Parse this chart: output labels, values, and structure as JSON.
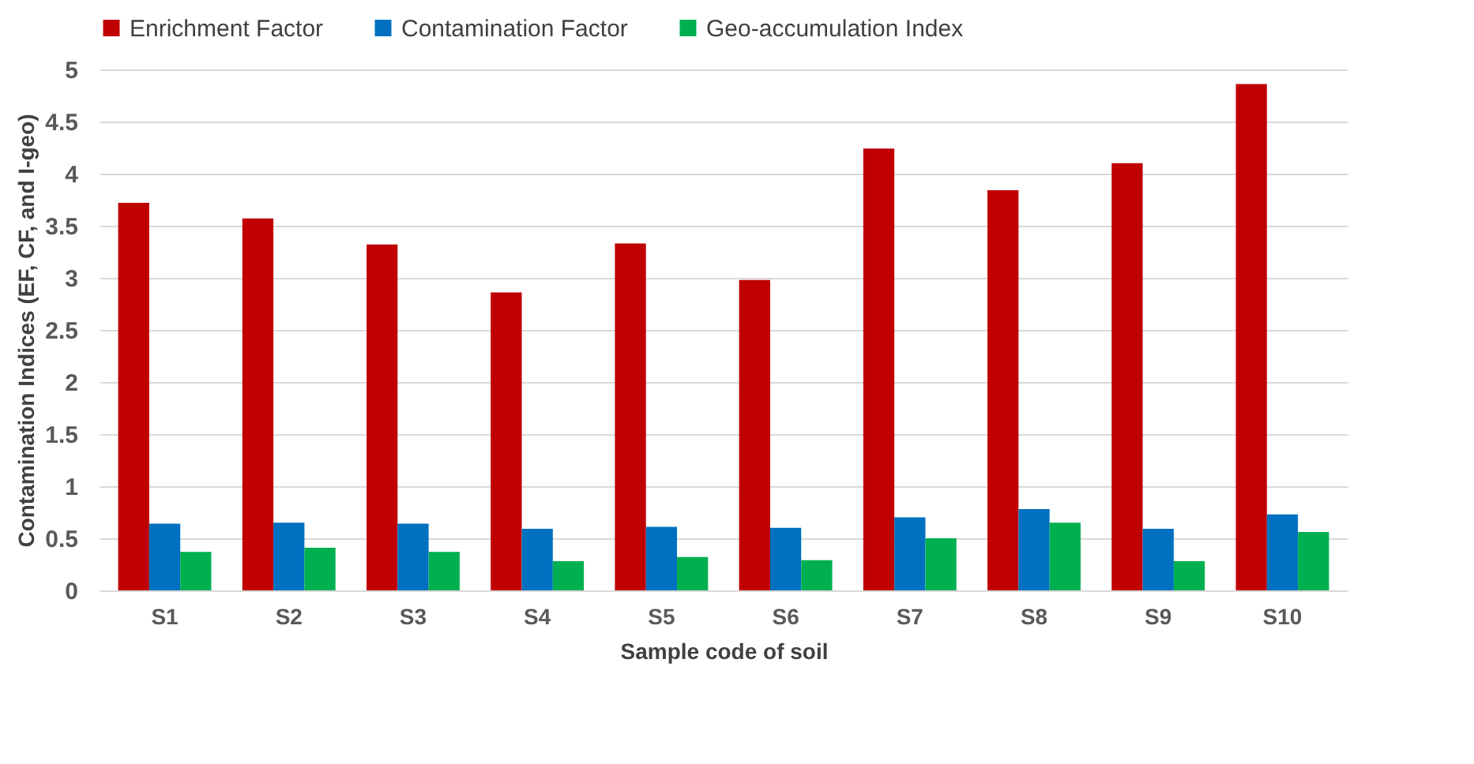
{
  "chart_data": {
    "type": "bar",
    "xlabel": "Sample code of soil",
    "ylabel": "Contamination Indices (EF, CF, and I-geo)",
    "categories": [
      "S1",
      "S2",
      "S3",
      "S4",
      "S5",
      "S6",
      "S7",
      "S8",
      "S9",
      "S10"
    ],
    "series": [
      {
        "name": "Enrichment Factor",
        "color": "#c00000",
        "values": [
          3.72,
          3.57,
          3.32,
          2.86,
          3.33,
          2.98,
          4.24,
          3.84,
          4.1,
          4.86
        ]
      },
      {
        "name": "Contamination Factor",
        "color": "#0070c0",
        "values": [
          0.64,
          0.65,
          0.64,
          0.59,
          0.61,
          0.6,
          0.7,
          0.78,
          0.59,
          0.73
        ]
      },
      {
        "name": "Geo-accumulation Index",
        "color": "#00b050",
        "values": [
          0.37,
          0.41,
          0.37,
          0.28,
          0.32,
          0.29,
          0.5,
          0.65,
          0.28,
          0.56
        ]
      }
    ],
    "ylim": [
      0,
      5
    ],
    "yticks": [
      0,
      0.5,
      1,
      1.5,
      2,
      2.5,
      3,
      3.5,
      4,
      4.5,
      5
    ],
    "grid": "y",
    "legend": "top"
  }
}
